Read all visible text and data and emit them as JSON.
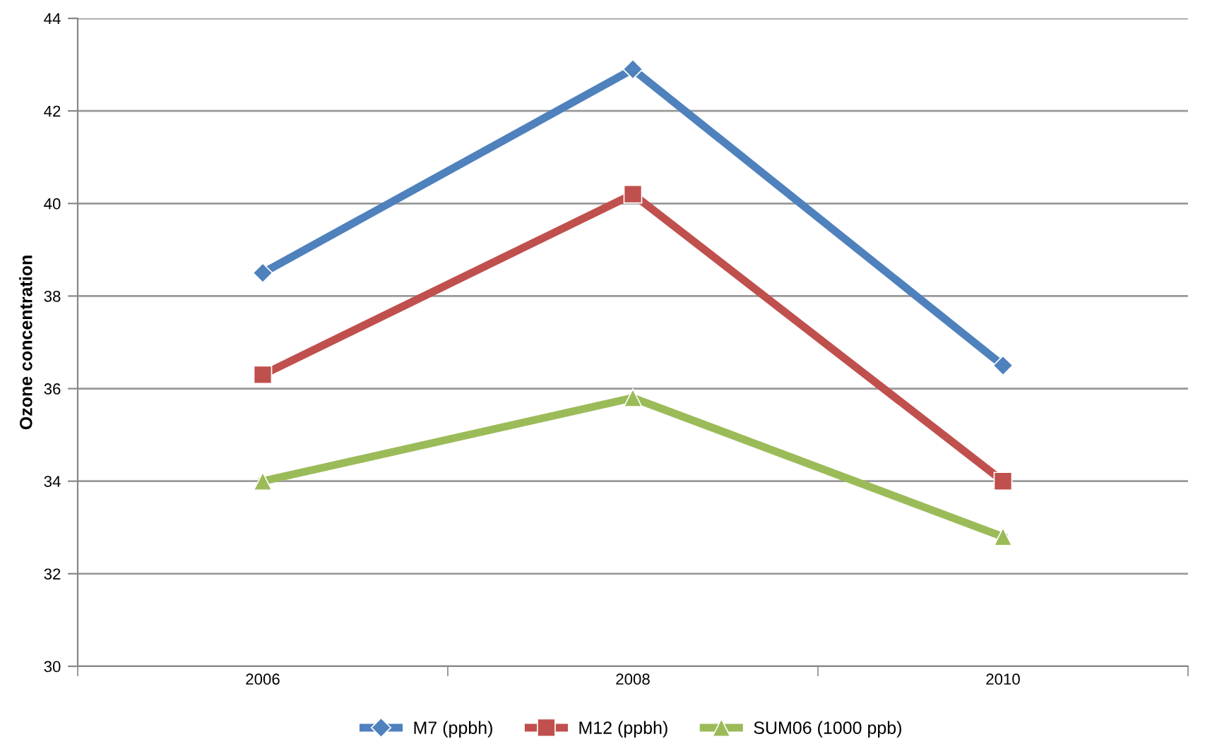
{
  "chart_data": {
    "type": "line",
    "ylabel": "Ozone concentration",
    "categories": [
      "2006",
      "2008",
      "2010"
    ],
    "series": [
      {
        "name": "M7 (ppbh)",
        "color": "#4f81bd",
        "marker": "diamond",
        "values": [
          38.5,
          42.9,
          36.5
        ]
      },
      {
        "name": "M12 (ppbh)",
        "color": "#c0504d",
        "marker": "square",
        "values": [
          36.3,
          40.2,
          34.0
        ]
      },
      {
        "name": "SUM06 (1000 ppb)",
        "color": "#9bbb59",
        "marker": "triangle",
        "values": [
          34.0,
          35.8,
          32.8
        ]
      }
    ],
    "ylim": [
      30,
      44
    ],
    "yticks": [
      30,
      32,
      34,
      36,
      38,
      40,
      42,
      44
    ],
    "grid": "y",
    "legend": "bottom",
    "line_style": "solid"
  }
}
